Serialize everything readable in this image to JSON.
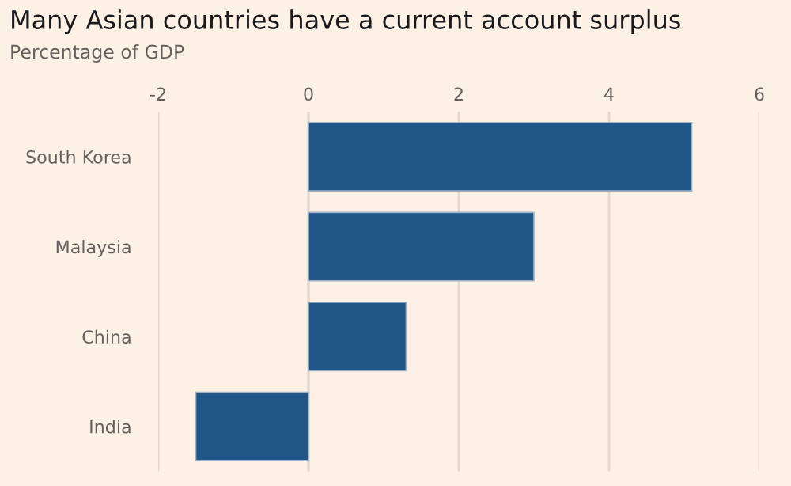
{
  "chart_data": {
    "type": "bar",
    "orientation": "horizontal",
    "title": "Many Asian countries have a current account surplus",
    "subtitle": "Percentage of GDP",
    "categories": [
      "South Korea",
      "Malaysia",
      "China",
      "India"
    ],
    "values": [
      5.1,
      3.0,
      1.3,
      -1.5
    ],
    "color": "#215688",
    "xlim": [
      -2,
      6
    ],
    "xticks": [
      -2,
      0,
      2,
      4,
      6
    ],
    "grid": "x",
    "legend": false
  }
}
